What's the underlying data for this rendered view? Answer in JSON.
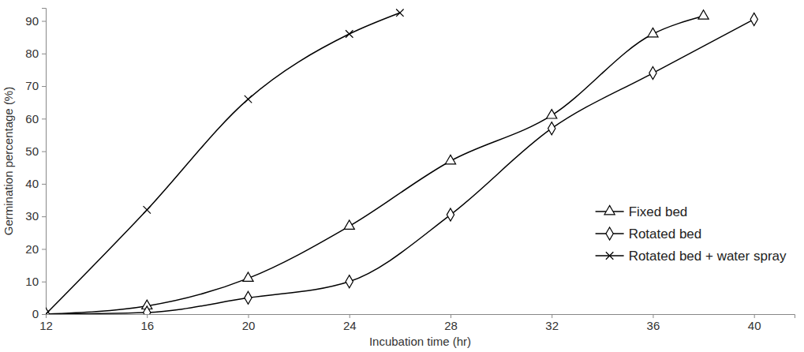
{
  "chart_data": {
    "type": "line",
    "x_label": "Incubation time (hr)",
    "y_label": "Germination percentage (%)",
    "xlim": [
      12,
      41.6
    ],
    "xticks": [
      12,
      16,
      20,
      24,
      28,
      32,
      36,
      40
    ],
    "ylim": [
      0,
      94
    ],
    "yticks": [
      0,
      10,
      20,
      30,
      40,
      50,
      60,
      70,
      80,
      90
    ],
    "grid": false,
    "legend": "lower right",
    "series": [
      {
        "name": "Fixed bed",
        "color": "#000000",
        "marker": "triangle",
        "line_style": "solid",
        "x": [
          12,
          16,
          20,
          24,
          28,
          32,
          36,
          38
        ],
        "values": [
          0,
          2.5,
          11,
          27,
          47,
          61,
          86,
          91.5
        ]
      },
      {
        "name": "Rotated bed",
        "color": "#000000",
        "marker": "diamond",
        "line_style": "solid",
        "x": [
          12,
          16,
          20,
          24,
          28,
          32,
          36,
          40
        ],
        "values": [
          0,
          0.5,
          5,
          10,
          30.5,
          57,
          74,
          90.5
        ]
      },
      {
        "name": "Rotated bed + water spray",
        "color": "#000000",
        "marker": "x",
        "line_style": "solid",
        "x": [
          12,
          16,
          20,
          24,
          26
        ],
        "values": [
          0,
          32,
          66,
          86,
          92.5
        ]
      }
    ]
  }
}
